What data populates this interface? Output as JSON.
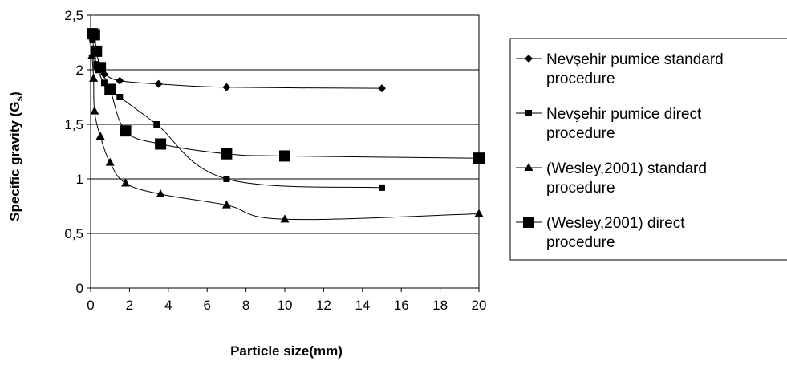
{
  "chart_data": {
    "type": "line",
    "xlabel": "Particle size(mm)",
    "ylabel": "Specific gravity (Gs)",
    "ylabel_main": "Specific gravity (G",
    "ylabel_sub": "s",
    "ylabel_end": ")",
    "xlim": [
      0,
      20
    ],
    "ylim": [
      0,
      2.5
    ],
    "x_ticks": [
      "0",
      "2",
      "4",
      "6",
      "8",
      "10",
      "12",
      "14",
      "16",
      "18",
      "20"
    ],
    "y_ticks": [
      "0",
      "0,5",
      "1",
      "1,5",
      "2",
      "2,5"
    ],
    "grid": "horizontal",
    "legend_position": "right",
    "series": [
      {
        "name": "Nevşehir pumice standard procedure",
        "legend_lines": [
          "Nevşehir pumice standard",
          "procedure"
        ],
        "marker": "diamond",
        "x": [
          0.1,
          0.3,
          0.7,
          1.5,
          3.5,
          7.0,
          15.0
        ],
        "y": [
          2.13,
          2.02,
          1.96,
          1.9,
          1.87,
          1.84,
          1.83
        ]
      },
      {
        "name": "Nevşehir pumice direct procedure",
        "legend_lines": [
          "Nevşehir pumice direct",
          "procedure"
        ],
        "marker": "small-square",
        "x": [
          0.1,
          0.3,
          0.7,
          1.5,
          3.4,
          7.0,
          15.0
        ],
        "y": [
          2.28,
          2.05,
          1.88,
          1.75,
          1.5,
          1.0,
          0.92
        ]
      },
      {
        "name": "(Wesley,2001) standard procedure",
        "legend_lines": [
          "(Wesley,2001) standard",
          "procedure"
        ],
        "marker": "triangle",
        "x": [
          0.07,
          0.15,
          0.2,
          0.5,
          1.0,
          1.8,
          3.6,
          7.0,
          10.0,
          20.0
        ],
        "y": [
          2.13,
          1.92,
          1.62,
          1.39,
          1.15,
          0.96,
          0.86,
          0.76,
          0.63,
          0.68
        ]
      },
      {
        "name": "(Wesley,2001) direct procedure",
        "legend_lines": [
          "(Wesley,2001) direct",
          "procedure"
        ],
        "marker": "large-square",
        "x": [
          0.1,
          0.2,
          0.3,
          0.5,
          1.0,
          1.8,
          3.6,
          7.0,
          10.0,
          20.0
        ],
        "y": [
          2.33,
          2.32,
          2.17,
          2.02,
          1.82,
          1.44,
          1.32,
          1.23,
          1.21,
          1.19
        ]
      }
    ]
  }
}
